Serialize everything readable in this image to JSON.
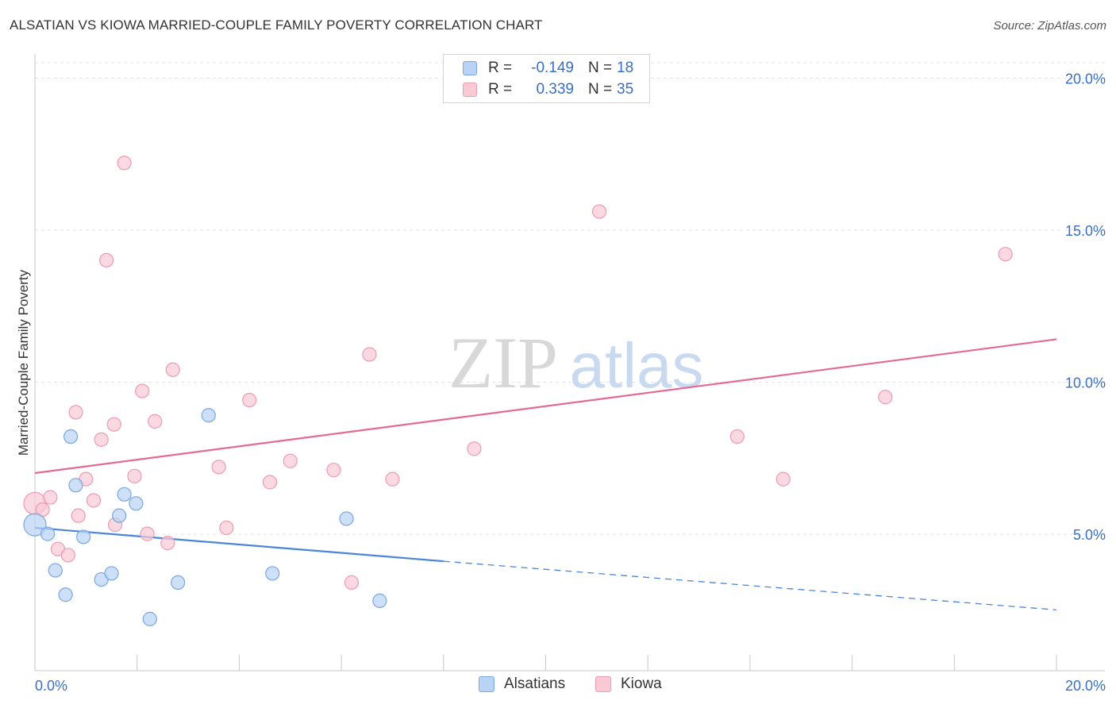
{
  "title": "ALSATIAN VS KIOWA MARRIED-COUPLE FAMILY POVERTY CORRELATION CHART",
  "source": "Source: ZipAtlas.com",
  "watermark": {
    "zip": "ZIP",
    "atlas": "atlas"
  },
  "colors": {
    "blue": "#4a86d8",
    "blue_fill": "#b8d3f5",
    "pink": "#e26a95",
    "pink_fill": "#f9c9d6",
    "axis_label": "#3a6fc4"
  },
  "legend": {
    "rows": [
      {
        "series": "Alsatians",
        "r_label": "R =",
        "r_value": "-0.149",
        "n_label": "N =",
        "n_value": "18"
      },
      {
        "series": "Kiowa",
        "r_label": "R =",
        "r_value": "0.339",
        "n_label": "N =",
        "n_value": "35"
      }
    ]
  },
  "bottom_legend": [
    "Alsatians",
    "Kiowa"
  ],
  "chart_data": {
    "type": "scatter",
    "title": "ALSATIAN VS KIOWA MARRIED-COUPLE FAMILY POVERTY CORRELATION CHART",
    "xlabel": "",
    "ylabel": "Married-Couple Family Poverty",
    "xlim": [
      0,
      20
    ],
    "ylim": [
      0,
      20
    ],
    "x_tick_labels": [
      "0.0%",
      "20.0%"
    ],
    "y_ticks": [
      5,
      10,
      15,
      20
    ],
    "y_tick_labels": [
      "5.0%",
      "10.0%",
      "15.0%",
      "20.0%"
    ],
    "grid": true,
    "legend_position": "top-center",
    "series": [
      {
        "name": "Alsatians",
        "r": -0.149,
        "n": 18,
        "points": [
          [
            0.0,
            5.3
          ],
          [
            0.25,
            5.0
          ],
          [
            0.4,
            3.8
          ],
          [
            0.6,
            3.0
          ],
          [
            0.7,
            8.2
          ],
          [
            0.8,
            6.6
          ],
          [
            0.95,
            4.9
          ],
          [
            1.3,
            3.5
          ],
          [
            1.5,
            3.7
          ],
          [
            1.65,
            5.6
          ],
          [
            1.75,
            6.3
          ],
          [
            1.98,
            6.0
          ],
          [
            2.25,
            2.2
          ],
          [
            2.8,
            3.4
          ],
          [
            3.4,
            8.9
          ],
          [
            4.65,
            3.7
          ],
          [
            6.1,
            5.5
          ],
          [
            6.75,
            2.8
          ]
        ],
        "trend": {
          "x_solid": [
            0,
            8
          ],
          "y_solid": [
            5.2,
            4.1
          ],
          "x_dashed": [
            8,
            20
          ],
          "y_dashed": [
            4.1,
            2.5
          ]
        }
      },
      {
        "name": "Kiowa",
        "r": 0.339,
        "n": 35,
        "points": [
          [
            0.0,
            6.0
          ],
          [
            0.15,
            5.8
          ],
          [
            0.3,
            6.2
          ],
          [
            0.45,
            4.5
          ],
          [
            0.65,
            4.3
          ],
          [
            0.8,
            9.0
          ],
          [
            0.85,
            5.6
          ],
          [
            1.0,
            6.8
          ],
          [
            1.15,
            6.1
          ],
          [
            1.3,
            8.1
          ],
          [
            1.4,
            14.0
          ],
          [
            1.55,
            8.6
          ],
          [
            1.57,
            5.3
          ],
          [
            1.75,
            17.2
          ],
          [
            1.95,
            6.9
          ],
          [
            2.1,
            9.7
          ],
          [
            2.2,
            5.0
          ],
          [
            2.35,
            8.7
          ],
          [
            2.6,
            4.7
          ],
          [
            2.7,
            10.4
          ],
          [
            3.6,
            7.2
          ],
          [
            3.75,
            5.2
          ],
          [
            4.2,
            9.4
          ],
          [
            4.6,
            6.7
          ],
          [
            5.0,
            7.4
          ],
          [
            5.85,
            7.1
          ],
          [
            6.2,
            3.4
          ],
          [
            6.55,
            10.9
          ],
          [
            7.0,
            6.8
          ],
          [
            8.6,
            7.8
          ],
          [
            11.05,
            15.6
          ],
          [
            13.75,
            8.2
          ],
          [
            14.65,
            6.8
          ],
          [
            16.65,
            9.5
          ],
          [
            19.0,
            14.2
          ]
        ],
        "trend": {
          "x": [
            0,
            20
          ],
          "y": [
            7.0,
            11.4
          ]
        }
      }
    ]
  }
}
